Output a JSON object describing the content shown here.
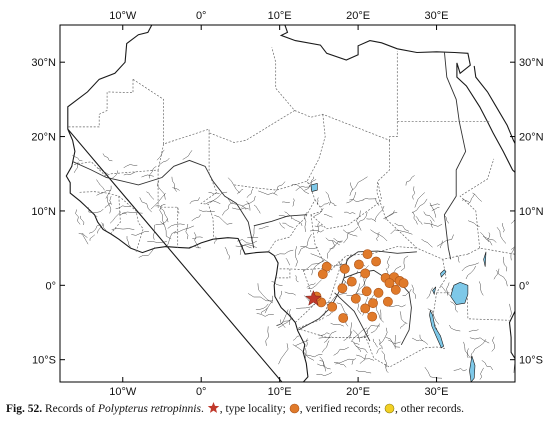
{
  "map": {
    "lon_range": [
      -18,
      40
    ],
    "lat_range": [
      -13,
      35
    ],
    "graticule_step": 10,
    "colors": {
      "frame": "#000000",
      "coast": "#1a1a1a",
      "border": "#666666",
      "river": "#333333",
      "lake": "#7ec8e8",
      "verified": "#e07a2a",
      "verified_edge": "#a9531a",
      "other": "#f2d024",
      "type_star": "#c0392b"
    },
    "lon_ticks": [
      {
        "value": -10,
        "label": "10°W"
      },
      {
        "value": 0,
        "label": "0°"
      },
      {
        "value": 10,
        "label": "10°E"
      },
      {
        "value": 20,
        "label": "20°E"
      },
      {
        "value": 30,
        "label": "30°E"
      }
    ],
    "lat_ticks": [
      {
        "value": 30,
        "label": "30°N"
      },
      {
        "value": 20,
        "label": "20°N"
      },
      {
        "value": 10,
        "label": "10°N"
      },
      {
        "value": 0,
        "label": "0°"
      },
      {
        "value": -10,
        "label": "10°S"
      }
    ],
    "type_locality": {
      "lon": 14.3,
      "lat": -1.8
    },
    "verified_records": [
      {
        "lon": 16.0,
        "lat": 2.5
      },
      {
        "lon": 18.3,
        "lat": 2.2
      },
      {
        "lon": 20.1,
        "lat": 2.8
      },
      {
        "lon": 21.2,
        "lat": 4.2
      },
      {
        "lon": 22.3,
        "lat": 3.2
      },
      {
        "lon": 20.9,
        "lat": 1.6
      },
      {
        "lon": 23.5,
        "lat": 1.0
      },
      {
        "lon": 24.6,
        "lat": 1.1
      },
      {
        "lon": 25.3,
        "lat": 0.6
      },
      {
        "lon": 24.0,
        "lat": 0.3
      },
      {
        "lon": 25.8,
        "lat": 0.3
      },
      {
        "lon": 18.0,
        "lat": -0.4
      },
      {
        "lon": 19.2,
        "lat": 0.5
      },
      {
        "lon": 21.1,
        "lat": -0.8
      },
      {
        "lon": 22.6,
        "lat": -1.0
      },
      {
        "lon": 24.8,
        "lat": -0.6
      },
      {
        "lon": 23.8,
        "lat": -2.2
      },
      {
        "lon": 21.9,
        "lat": -2.4
      },
      {
        "lon": 19.7,
        "lat": -1.8
      },
      {
        "lon": 20.9,
        "lat": -3.1
      },
      {
        "lon": 15.3,
        "lat": -2.3
      },
      {
        "lon": 16.7,
        "lat": -2.9
      },
      {
        "lon": 18.1,
        "lat": -4.4
      },
      {
        "lon": 21.8,
        "lat": -4.2
      },
      {
        "lon": 15.5,
        "lat": 1.5
      },
      {
        "lon": 14.7,
        "lat": -1.5
      }
    ],
    "other_records": []
  },
  "caption": {
    "fig": "Fig. 52.",
    "text1": "Records of",
    "species": "Polypterus retropinnis",
    "text2": ".",
    "type_label": ", type locality;",
    "verified_label": ", verified records;",
    "other_label": ", other records."
  }
}
